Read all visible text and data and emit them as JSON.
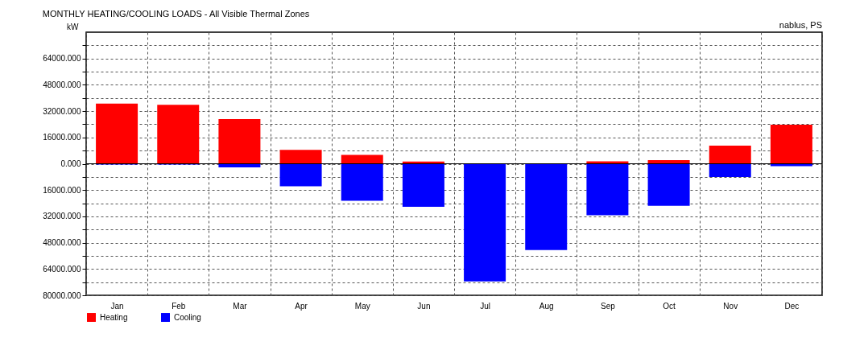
{
  "chart_data": {
    "type": "bar",
    "title": "MONTHLY HEATING/COOLING LOADS - All Visible Thermal Zones",
    "ylabel": "kW",
    "annotations": [
      "nablus, PS"
    ],
    "categories": [
      "Jan",
      "Feb",
      "Mar",
      "Apr",
      "May",
      "Jun",
      "Jul",
      "Aug",
      "Sep",
      "Oct",
      "Nov",
      "Dec"
    ],
    "series": [
      {
        "name": "Heating",
        "color": "#ff0000",
        "values": [
          36600,
          35900,
          27100,
          8500,
          5400,
          1400,
          null,
          null,
          1500,
          2200,
          11000,
          23700
        ]
      },
      {
        "name": "Cooling",
        "color": "#0000ff",
        "values": [
          -500,
          -500,
          -2200,
          -13700,
          -22500,
          -26200,
          -71600,
          -52500,
          -31300,
          -25600,
          -8100,
          -1500
        ]
      }
    ],
    "ylim": [
      -80000,
      80000
    ],
    "yticks": [
      {
        "value": -80000,
        "label": "80000.000"
      },
      {
        "value": -72000,
        "label": null
      },
      {
        "value": -64000,
        "label": "64000.000"
      },
      {
        "value": -56000,
        "label": null
      },
      {
        "value": -48000,
        "label": "48000.000"
      },
      {
        "value": -40000,
        "label": null
      },
      {
        "value": -32000,
        "label": "32000.000"
      },
      {
        "value": -24000,
        "label": null
      },
      {
        "value": -16000,
        "label": "16000.000"
      },
      {
        "value": -8000,
        "label": null
      },
      {
        "value": 0,
        "label": "0.000"
      },
      {
        "value": 8000,
        "label": null
      },
      {
        "value": 16000,
        "label": "16000.000"
      },
      {
        "value": 24000,
        "label": null
      },
      {
        "value": 32000,
        "label": "32000.000"
      },
      {
        "value": 40000,
        "label": null
      },
      {
        "value": 48000,
        "label": "48000.000"
      },
      {
        "value": 56000,
        "label": null
      },
      {
        "value": 64000,
        "label": "64000.000"
      },
      {
        "value": 72000,
        "label": null
      }
    ],
    "grid": true,
    "stacked": true,
    "legend": "bottom left"
  }
}
